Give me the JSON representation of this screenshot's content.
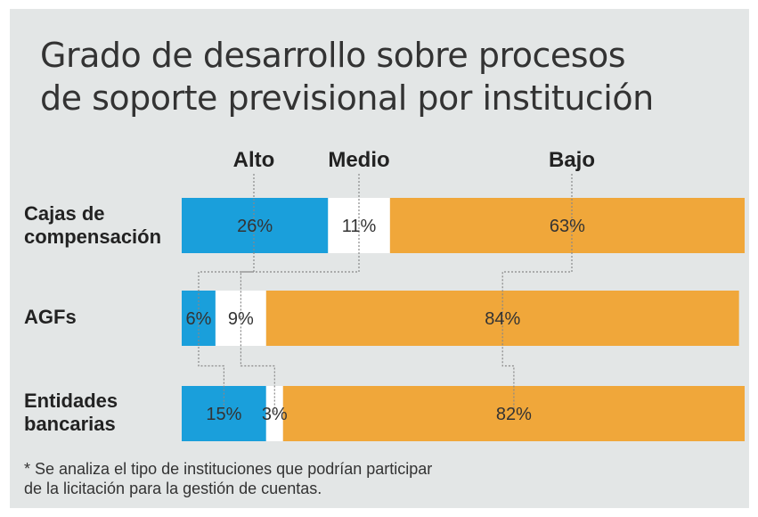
{
  "chart_data": {
    "type": "bar",
    "stacked": true,
    "orientation": "horizontal",
    "title": "Grado de desarrollo sobre procesos de soporte previsional por institución",
    "title_lines": [
      "Grado de desarrollo sobre procesos",
      "de soporte previsional por institución"
    ],
    "categories": [
      "Cajas de compensación",
      "AGFs",
      "Entidades bancarias"
    ],
    "category_lines": [
      [
        "Cajas de",
        "compensación"
      ],
      [
        "AGFs"
      ],
      [
        "Entidades",
        "bancarias"
      ]
    ],
    "series": [
      {
        "name": "Alto",
        "values": [
          26,
          6,
          15
        ],
        "labels": [
          "26%",
          "6%",
          "15%"
        ],
        "color": "#1a9fdb"
      },
      {
        "name": "Medio",
        "values": [
          11,
          9,
          3
        ],
        "labels": [
          "11%",
          "9%",
          "3%"
        ],
        "color": "#ffffff"
      },
      {
        "name": "Bajo",
        "values": [
          63,
          84,
          82
        ],
        "labels": [
          "63%",
          "84%",
          "82%"
        ],
        "color": "#f0a73a"
      }
    ],
    "legend_placement": "top",
    "note": [
      "* Se analiza el tipo de instituciones que podrían participar",
      "de la licitación para la gestión de cuentas."
    ]
  },
  "colors": {
    "background": "#e3e6e6",
    "leader_line": "#888888"
  }
}
